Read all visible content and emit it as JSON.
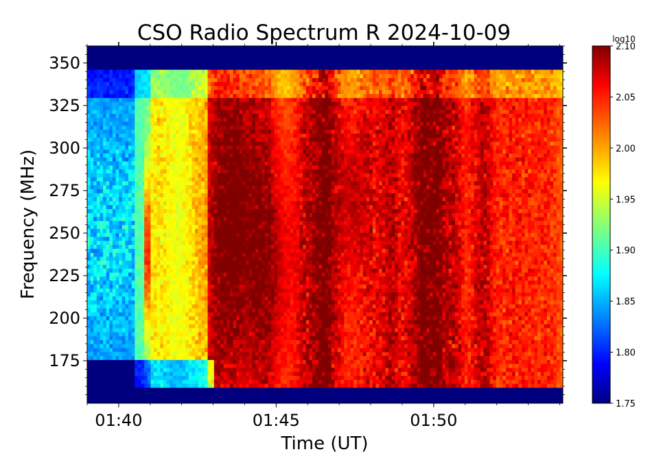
{
  "chart_data": {
    "type": "heatmap",
    "title": "CSO Radio Spectrum R 2024-10-09",
    "xlabel": "Time (UT)",
    "ylabel": "Frequency (MHz)",
    "x_range_minutes": [
      99.0,
      114.1
    ],
    "x_ticks": [
      {
        "value": 100,
        "label": "01:40"
      },
      {
        "value": 105,
        "label": "01:45"
      },
      {
        "value": 110,
        "label": "01:50"
      }
    ],
    "ylim": [
      150,
      360
    ],
    "y_ticks": [
      175,
      200,
      225,
      250,
      275,
      300,
      325,
      350
    ],
    "colorbar": {
      "label": "log10",
      "range": [
        1.75,
        2.1
      ],
      "ticks": [
        "1.75",
        "1.80",
        "1.85",
        "1.90",
        "1.95",
        "2.00",
        "2.05",
        "2.10"
      ],
      "colormap": "jet"
    },
    "data_band_mhz": [
      160,
      345
    ],
    "background_level": 1.75
  }
}
